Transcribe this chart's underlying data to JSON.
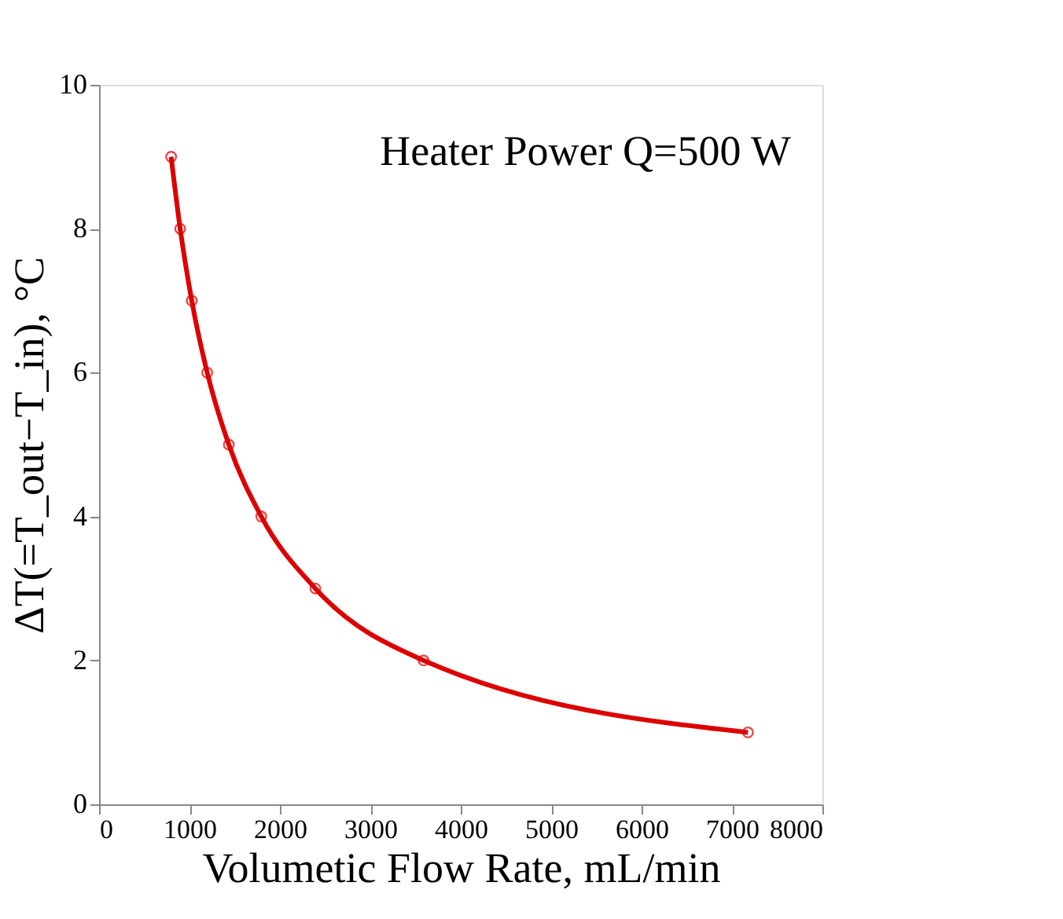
{
  "chart_data": {
    "type": "line",
    "xlabel": "Volumetic Flow Rate, mL/min",
    "ylabel": "ΔT(=T_out−T_in), °C",
    "annotations": [
      "Heater Power Q=500 W"
    ],
    "series": [
      {
        "color": "#dd0000",
        "x": [
          797,
          897,
          1025,
          1196,
          1435,
          1794,
          2392,
          3589,
          7177
        ],
        "values": [
          9,
          8,
          7,
          6,
          5,
          4,
          3,
          2,
          1
        ]
      }
    ],
    "xlim": [
      0,
      8000
    ],
    "xticks": [
      0,
      1000,
      2000,
      3000,
      4000,
      5000,
      6000,
      7000,
      8000
    ],
    "ylim": [
      0,
      10
    ],
    "yticks": [
      0,
      2,
      4,
      6,
      8,
      10
    ],
    "grid": false,
    "marker": "circle",
    "line_style": "solid"
  }
}
